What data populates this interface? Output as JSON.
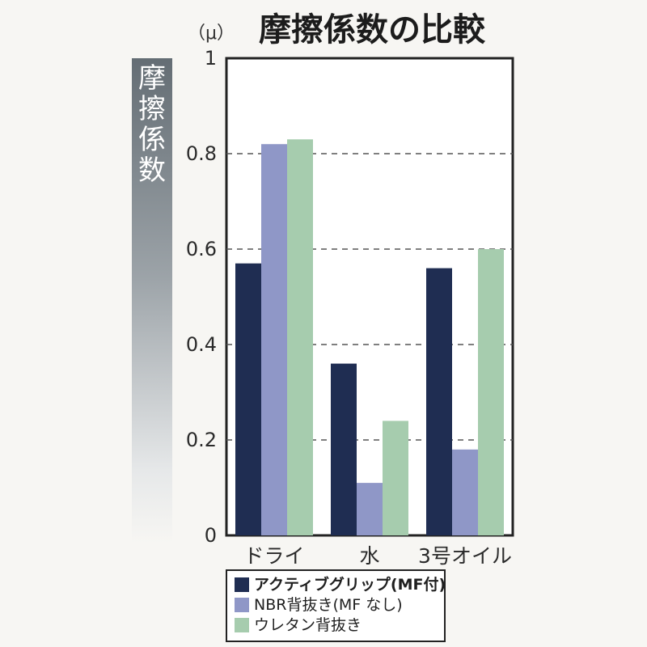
{
  "chart_data": {
    "type": "bar",
    "title": "摩擦係数の比較",
    "unit": "（μ）",
    "ylabel": [
      "摩",
      "擦",
      "係",
      "数"
    ],
    "ylim": [
      0,
      1
    ],
    "yticks": [
      "0",
      "0.2",
      "0.4",
      "0.6",
      "0.8",
      "1"
    ],
    "categories": [
      "ドライ",
      "水",
      "3号オイル"
    ],
    "series": [
      {
        "name": "アクティブグリップ(MF付)",
        "color": "#1f2d52",
        "values": [
          0.57,
          0.36,
          0.56
        ]
      },
      {
        "name": "NBR背抜き(MF なし)",
        "color": "#8f97c7",
        "values": [
          0.82,
          0.11,
          0.18
        ]
      },
      {
        "name": "ウレタン背抜き",
        "color": "#a6ccae",
        "values": [
          0.83,
          0.24,
          0.6
        ]
      }
    ],
    "grid": "dashed-horizontal",
    "legend": "bottom"
  }
}
